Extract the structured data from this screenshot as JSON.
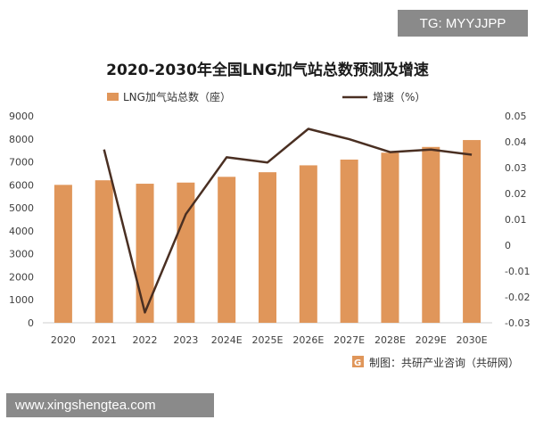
{
  "watermark_badge": "TG: MYYJJPP",
  "website": "www.xingshengtea.com",
  "colors": {
    "bar": "#e0965a",
    "line": "#4a2f22",
    "axis_text": "#404040",
    "axis_line": "#cfcfcf",
    "source_icon": "#e0965a"
  },
  "chart_data": {
    "type": "bar",
    "title": "2020-2030年全国LNG加气站总数预测及增速",
    "categories": [
      "2020",
      "2021",
      "2022",
      "2023",
      "2024E",
      "2025E",
      "2026E",
      "2027E",
      "2028E",
      "2029E",
      "2030E"
    ],
    "series": [
      {
        "name": "LNG加气站总数（座）",
        "type": "bar",
        "axis": "left",
        "values": [
          6000,
          6200,
          6050,
          6100,
          6350,
          6550,
          6850,
          7100,
          7400,
          7650,
          7950
        ]
      },
      {
        "name": "增速（%）",
        "type": "line",
        "axis": "right",
        "values": [
          null,
          0.037,
          -0.026,
          0.012,
          0.034,
          0.032,
          0.045,
          0.041,
          0.036,
          0.037,
          0.035
        ]
      }
    ],
    "y_left": {
      "min": 0,
      "max": 9000,
      "ticks": [
        "0",
        "1000",
        "2000",
        "3000",
        "4000",
        "5000",
        "6000",
        "7000",
        "8000",
        "9000"
      ]
    },
    "y_right": {
      "min": -0.03,
      "max": 0.05,
      "ticks": [
        "-0.03",
        "-0.02",
        "-0.01",
        "0",
        "0.01",
        "0.02",
        "0.03",
        "0.04",
        "0.05"
      ]
    },
    "legend_position": "top",
    "grid": false,
    "source": "制图：共研产业咨询（共研网）"
  }
}
